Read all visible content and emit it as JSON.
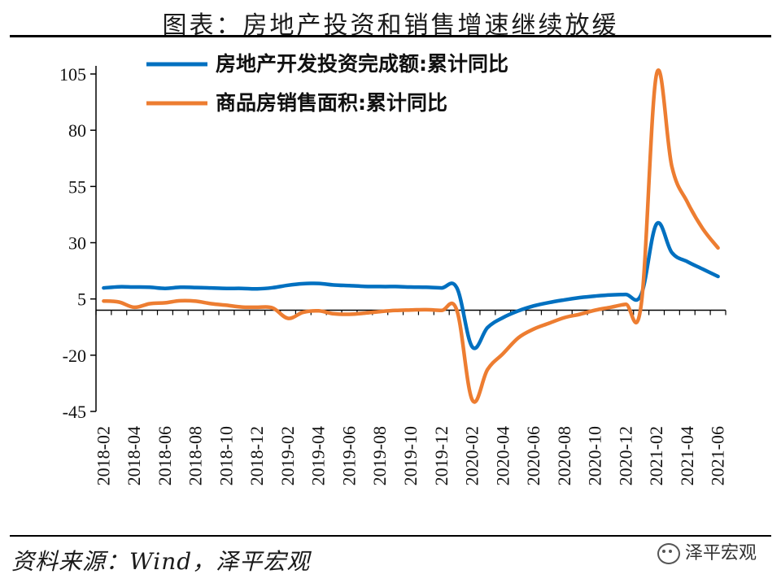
{
  "header": {
    "title": "图表：房地产投资和销售增速继续放缓"
  },
  "footer": {
    "source": "资料来源：Wind，泽平宏观",
    "watermark": "泽平宏观"
  },
  "chart_data": {
    "type": "line",
    "title": "图表：房地产投资和销售增速继续放缓",
    "xlabel": "",
    "ylabel": "",
    "ylim": [
      -45,
      105
    ],
    "yticks": [
      105,
      80,
      55,
      30,
      5,
      -20,
      -45
    ],
    "xtick_labels": [
      "2018-02",
      "2018-04",
      "2018-06",
      "2018-08",
      "2018-10",
      "2018-12",
      "2019-02",
      "2019-04",
      "2019-06",
      "2019-08",
      "2019-10",
      "2019-12",
      "2020-02",
      "2020-04",
      "2020-06",
      "2020-08",
      "2020-10",
      "2020-12",
      "2021-02",
      "2021-04",
      "2021-06"
    ],
    "legend": "top-center",
    "grid": false,
    "colors": {
      "investment": "#0070C0",
      "sales": "#ED7D31"
    },
    "x": [
      "2018-02",
      "2018-03",
      "2018-04",
      "2018-05",
      "2018-06",
      "2018-07",
      "2018-08",
      "2018-09",
      "2018-10",
      "2018-11",
      "2018-12",
      "2019-01",
      "2019-02",
      "2019-03",
      "2019-04",
      "2019-05",
      "2019-06",
      "2019-07",
      "2019-08",
      "2019-09",
      "2019-10",
      "2019-11",
      "2019-12",
      "2020-01",
      "2020-02",
      "2020-03",
      "2020-04",
      "2020-05",
      "2020-06",
      "2020-07",
      "2020-08",
      "2020-09",
      "2020-10",
      "2020-11",
      "2020-12",
      "2021-01",
      "2021-02",
      "2021-03",
      "2021-04",
      "2021-05",
      "2021-06"
    ],
    "series": [
      {
        "name": "房地产开发投资完成额:累计同比",
        "key": "investment",
        "values": [
          9.9,
          10.4,
          10.3,
          10.2,
          9.7,
          10.2,
          10.1,
          9.9,
          9.7,
          9.7,
          9.5,
          10.0,
          11.1,
          11.8,
          11.9,
          11.2,
          10.9,
          10.6,
          10.5,
          10.5,
          10.3,
          10.2,
          9.9,
          9.9,
          -16.3,
          -7.7,
          -3.3,
          -0.3,
          1.9,
          3.4,
          4.6,
          5.6,
          6.3,
          6.8,
          7.0,
          7.0,
          38.3,
          25.6,
          21.6,
          18.3,
          15.0
        ]
      },
      {
        "name": "商品房销售面积:累计同比",
        "key": "sales",
        "values": [
          4.1,
          3.6,
          1.3,
          2.9,
          3.3,
          4.2,
          4.0,
          2.9,
          2.2,
          1.4,
          1.3,
          1.0,
          -3.6,
          -0.9,
          -0.3,
          -1.6,
          -1.8,
          -1.3,
          -0.6,
          -0.1,
          0.1,
          0.2,
          -0.1,
          -0.1,
          -39.9,
          -26.3,
          -19.3,
          -12.3,
          -8.4,
          -5.8,
          -3.3,
          -1.8,
          0.0,
          1.3,
          2.6,
          2.6,
          104.9,
          63.8,
          48.1,
          36.3,
          27.7
        ]
      }
    ]
  }
}
